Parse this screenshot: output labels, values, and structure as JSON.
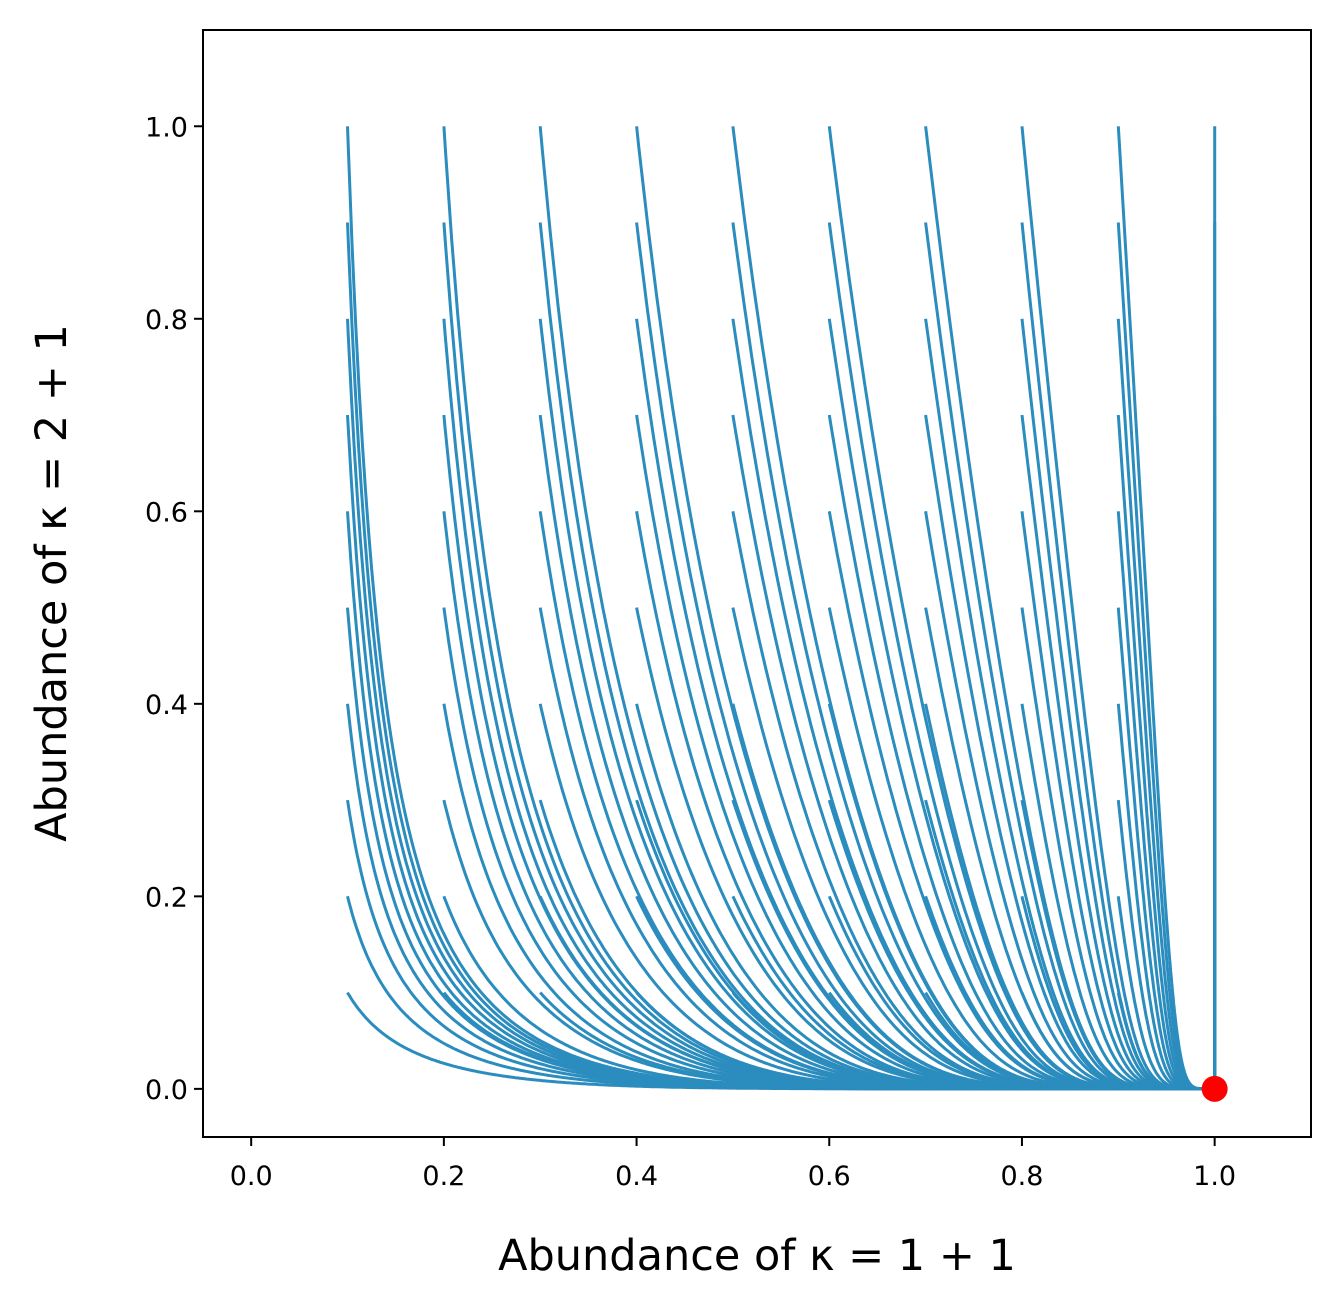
{
  "chart_data": {
    "type": "line",
    "title": "",
    "xlabel": "Abundance of κ = 1 + 1",
    "ylabel": "Abundance of κ = 2 + 1",
    "xlim": [
      -0.05,
      1.1
    ],
    "ylim": [
      -0.05,
      1.1
    ],
    "x_ticks": [
      "0.0",
      "0.2",
      "0.4",
      "0.6",
      "0.8",
      "1.0"
    ],
    "y_ticks": [
      "0.0",
      "0.2",
      "0.4",
      "0.6",
      "0.8",
      "1.0"
    ],
    "grid": false,
    "legend": "none",
    "series_color": "#2b8cbe",
    "fixed_point": {
      "x": 1.0,
      "y": 0.0,
      "color": "#ff0000"
    },
    "initial_x": [
      0.1,
      0.2,
      0.3,
      0.4,
      0.5,
      0.6,
      0.7,
      0.8,
      0.9,
      1.0
    ],
    "initial_y": [
      0.1,
      0.2,
      0.3,
      0.4,
      0.5,
      0.6,
      0.7,
      0.8,
      0.9,
      1.0
    ],
    "description_of_series": "Trajectories from each initial point (x0, y0) on a 0.1-spaced grid converge to the fixed point (1.0, 0.0)"
  }
}
